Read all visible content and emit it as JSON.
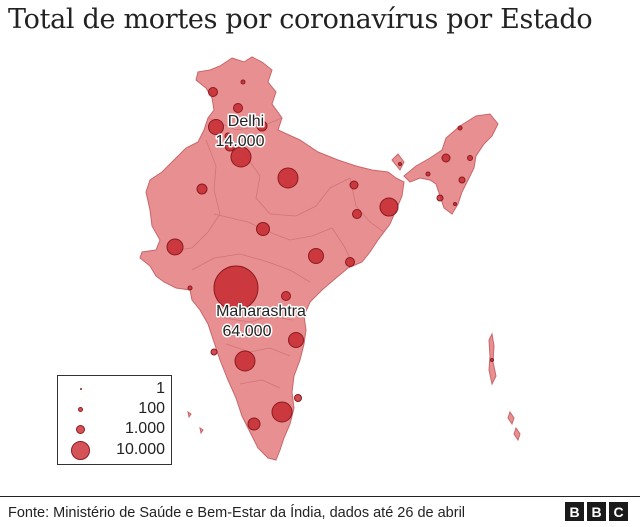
{
  "title": "Total de mortes por coronavírus por Estado",
  "source": "Fonte: Ministério de Saúde e Bem-Estar da Índia, dados até 26 de abril",
  "logo": {
    "letters": [
      "B",
      "B",
      "C"
    ]
  },
  "colors": {
    "land": "#e88f91",
    "land_stroke": "#c9666a",
    "bubble": "#c5262d",
    "bubble_stroke": "#8a1a1f"
  },
  "legend": {
    "items": [
      {
        "value": 1,
        "label": "1"
      },
      {
        "value": 100,
        "label": "100"
      },
      {
        "value": 1000,
        "label": "1.000"
      },
      {
        "value": 10000,
        "label": "10.000"
      }
    ]
  },
  "annotations": [
    {
      "name": "Delhi",
      "label": "Delhi",
      "value_label": "14.000",
      "value": 14000
    },
    {
      "name": "Maharashtra",
      "label": "Maharashtra",
      "value_label": "64.000",
      "value": 64000
    }
  ]
}
